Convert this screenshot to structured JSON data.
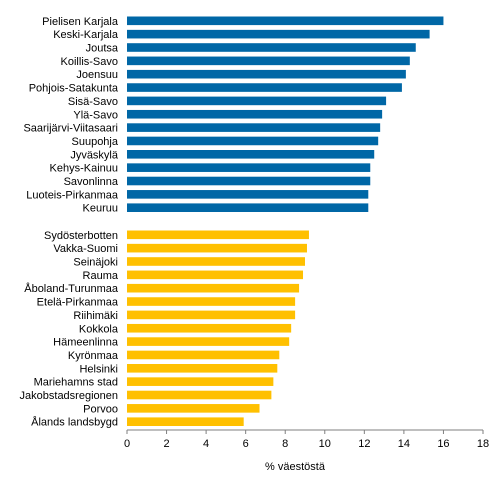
{
  "chart_data": {
    "type": "bar",
    "orientation": "horizontal",
    "xlabel": "% väestöstä",
    "xlim": [
      0,
      18
    ],
    "xticks": [
      0,
      2,
      4,
      6,
      8,
      10,
      12,
      14,
      16,
      18
    ],
    "grid": false,
    "groups": [
      {
        "color": "#0067a6",
        "categories": [
          "Pielisen Karjala",
          "Keski-Karjala",
          "Joutsa",
          "Koillis-Savo",
          "Joensuu",
          "Pohjois-Satakunta",
          "Sisä-Savo",
          "Ylä-Savo",
          "Saarijärvi-Viitasaari",
          "Suupohja",
          "Jyväskylä",
          "Kehys-Kainuu",
          "Savonlinna",
          "Luoteis-Pirkanmaa",
          "Keuruu"
        ],
        "values": [
          16.0,
          15.3,
          14.6,
          14.3,
          14.1,
          13.9,
          13.1,
          12.9,
          12.8,
          12.7,
          12.5,
          12.3,
          12.3,
          12.2,
          12.2
        ]
      },
      {
        "color": "#ffc000",
        "categories": [
          "Sydösterbotten",
          "Vakka-Suomi",
          "Seinäjoki",
          "Rauma",
          "Åboland-Turunmaa",
          "Etelä-Pirkanmaa",
          "Riihimäki",
          "Kokkola",
          "Hämeenlinna",
          "Kyrönmaa",
          "Helsinki",
          "Mariehamns stad",
          "Jakobstadsregionen",
          "Porvoo",
          "Ålands landsbygd"
        ],
        "values": [
          9.2,
          9.1,
          9.0,
          8.9,
          8.7,
          8.5,
          8.5,
          8.3,
          8.2,
          7.7,
          7.6,
          7.4,
          7.3,
          6.7,
          5.9
        ]
      }
    ]
  }
}
